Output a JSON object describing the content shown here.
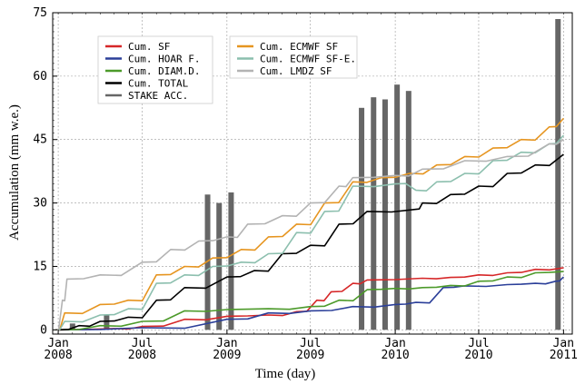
{
  "chart_data": {
    "type": "line",
    "xlabel": "Time (day)",
    "ylabel": "Accumulation (mm w.e.)",
    "xlim": [
      "2007-12-20",
      "2011-01-20"
    ],
    "ylim": [
      -1,
      75
    ],
    "grid": true,
    "legend_position": "top-left",
    "x_ticks": [
      {
        "date": "2008-01-01",
        "line1": "Jan",
        "line2": "2008"
      },
      {
        "date": "2008-07-01",
        "line1": "Jul",
        "line2": "2008"
      },
      {
        "date": "2009-01-01",
        "line1": "Jan",
        "line2": "2009"
      },
      {
        "date": "2009-07-01",
        "line1": "Jul",
        "line2": "2009"
      },
      {
        "date": "2010-01-01",
        "line1": "Jan",
        "line2": "2010"
      },
      {
        "date": "2010-07-01",
        "line1": "Jul",
        "line2": "2010"
      },
      {
        "date": "2011-01-01",
        "line1": "Jan",
        "line2": "2011"
      }
    ],
    "y_ticks": [
      0,
      15,
      30,
      45,
      60,
      75
    ],
    "series": [
      {
        "name": "Cum. SF",
        "color": "#d62728",
        "points": [
          [
            "2008-01-01",
            0
          ],
          [
            "2008-05-01",
            0.3
          ],
          [
            "2008-07-01",
            0.8
          ],
          [
            "2008-10-01",
            2.5
          ],
          [
            "2009-01-01",
            3.2
          ],
          [
            "2009-04-01",
            3.5
          ],
          [
            "2009-06-01",
            4.3
          ],
          [
            "2009-07-15",
            7
          ],
          [
            "2009-08-15",
            9
          ],
          [
            "2009-10-01",
            11
          ],
          [
            "2009-11-01",
            11.8
          ],
          [
            "2010-03-01",
            12.2
          ],
          [
            "2010-05-01",
            12.4
          ],
          [
            "2010-07-01",
            13
          ],
          [
            "2010-09-01",
            13.5
          ],
          [
            "2010-11-01",
            14.3
          ],
          [
            "2011-01-01",
            14.7
          ]
        ]
      },
      {
        "name": "Cum. HOAR F.",
        "color": "#2b3f99",
        "points": [
          [
            "2008-01-01",
            0
          ],
          [
            "2008-07-01",
            0.5
          ],
          [
            "2009-01-01",
            2.5
          ],
          [
            "2009-04-01",
            4
          ],
          [
            "2009-07-01",
            4.5
          ],
          [
            "2009-10-01",
            5.5
          ],
          [
            "2010-01-01",
            6
          ],
          [
            "2010-02-15",
            6.5
          ],
          [
            "2010-04-15",
            10
          ],
          [
            "2010-06-01",
            10.4
          ],
          [
            "2010-09-01",
            10.7
          ],
          [
            "2010-11-01",
            11
          ],
          [
            "2010-12-15",
            11.5
          ],
          [
            "2011-01-01",
            12.5
          ]
        ]
      },
      {
        "name": "Cum. DIAM.D.",
        "color": "#4c9a2a",
        "points": [
          [
            "2008-01-01",
            0
          ],
          [
            "2008-04-01",
            1
          ],
          [
            "2008-07-01",
            2
          ],
          [
            "2008-10-01",
            4.5
          ],
          [
            "2009-01-01",
            4.8
          ],
          [
            "2009-04-01",
            5
          ],
          [
            "2009-07-01",
            5.5
          ],
          [
            "2009-09-01",
            7
          ],
          [
            "2009-11-01",
            9.5
          ],
          [
            "2010-01-01",
            9.8
          ],
          [
            "2010-03-01",
            10
          ],
          [
            "2010-05-01",
            10.5
          ],
          [
            "2010-07-01",
            11.5
          ],
          [
            "2010-09-01",
            12.5
          ],
          [
            "2010-11-01",
            13.5
          ],
          [
            "2011-01-01",
            13.8
          ]
        ]
      },
      {
        "name": "Cum. TOTAL",
        "color": "#000000",
        "points": [
          [
            "2008-01-01",
            0
          ],
          [
            "2008-02-15",
            1
          ],
          [
            "2008-04-01",
            2
          ],
          [
            "2008-06-01",
            3
          ],
          [
            "2008-08-01",
            7
          ],
          [
            "2008-10-01",
            10
          ],
          [
            "2009-01-01",
            12.5
          ],
          [
            "2009-03-01",
            14
          ],
          [
            "2009-05-01",
            18
          ],
          [
            "2009-07-01",
            20
          ],
          [
            "2009-09-01",
            25
          ],
          [
            "2009-11-01",
            28
          ],
          [
            "2010-02-15",
            28.5
          ],
          [
            "2010-03-01",
            30
          ],
          [
            "2010-05-01",
            32
          ],
          [
            "2010-07-01",
            34
          ],
          [
            "2010-09-01",
            37
          ],
          [
            "2010-11-01",
            39
          ],
          [
            "2011-01-01",
            41.5
          ]
        ]
      },
      {
        "name": "Cum. ECMWF SF",
        "color": "#e69520",
        "points": [
          [
            "2007-12-25",
            0
          ],
          [
            "2008-01-15",
            4
          ],
          [
            "2008-04-01",
            6
          ],
          [
            "2008-06-01",
            7
          ],
          [
            "2008-08-01",
            13
          ],
          [
            "2008-10-01",
            15
          ],
          [
            "2008-12-01",
            17
          ],
          [
            "2009-02-01",
            19
          ],
          [
            "2009-04-01",
            22
          ],
          [
            "2009-06-01",
            25
          ],
          [
            "2009-08-01",
            30
          ],
          [
            "2009-10-01",
            35
          ],
          [
            "2009-12-01",
            36
          ],
          [
            "2010-02-01",
            37
          ],
          [
            "2010-04-01",
            39
          ],
          [
            "2010-06-01",
            41
          ],
          [
            "2010-08-01",
            43
          ],
          [
            "2010-10-01",
            45
          ],
          [
            "2010-12-01",
            48
          ],
          [
            "2011-01-01",
            50
          ]
        ]
      },
      {
        "name": "Cum. ECMWF SF-E.",
        "color": "#8cbfae",
        "points": [
          [
            "2007-12-25",
            0
          ],
          [
            "2008-01-15",
            2
          ],
          [
            "2008-04-01",
            3.5
          ],
          [
            "2008-06-01",
            5
          ],
          [
            "2008-08-01",
            11
          ],
          [
            "2008-10-01",
            13
          ],
          [
            "2008-12-01",
            15
          ],
          [
            "2009-02-01",
            16
          ],
          [
            "2009-04-01",
            18
          ],
          [
            "2009-06-01",
            23
          ],
          [
            "2009-08-01",
            28
          ],
          [
            "2009-10-01",
            34
          ],
          [
            "2010-01-01",
            34.5
          ],
          [
            "2010-02-15",
            33
          ],
          [
            "2010-04-01",
            35
          ],
          [
            "2010-06-01",
            37
          ],
          [
            "2010-08-01",
            40
          ],
          [
            "2010-10-01",
            42
          ],
          [
            "2010-12-01",
            44
          ],
          [
            "2011-01-01",
            46
          ]
        ]
      },
      {
        "name": "Cum. LMDZ SF",
        "color": "#b3b3b3",
        "points": [
          [
            "2007-12-25",
            0
          ],
          [
            "2008-01-10",
            7
          ],
          [
            "2008-01-20",
            12
          ],
          [
            "2008-04-01",
            13
          ],
          [
            "2008-07-01",
            16
          ],
          [
            "2008-09-01",
            19
          ],
          [
            "2008-11-01",
            21
          ],
          [
            "2009-01-01",
            22
          ],
          [
            "2009-02-15",
            25
          ],
          [
            "2009-05-01",
            27
          ],
          [
            "2009-07-01",
            30
          ],
          [
            "2009-09-01",
            34
          ],
          [
            "2009-10-01",
            36
          ],
          [
            "2010-01-01",
            36.5
          ],
          [
            "2010-03-01",
            38
          ],
          [
            "2010-06-01",
            40
          ],
          [
            "2010-09-01",
            41
          ],
          [
            "2010-12-01",
            44
          ],
          [
            "2011-01-01",
            45
          ]
        ]
      }
    ],
    "stake_acc": {
      "name": "STAKE ACC.",
      "color": "#666666",
      "bars": [
        {
          "date": "2008-02-01",
          "value": 1.5
        },
        {
          "date": "2008-04-15",
          "value": 3.5
        },
        {
          "date": "2008-11-20",
          "value": 32
        },
        {
          "date": "2008-12-15",
          "value": 30
        },
        {
          "date": "2009-01-10",
          "value": 32.5
        },
        {
          "date": "2009-10-20",
          "value": 52.5
        },
        {
          "date": "2009-11-15",
          "value": 55
        },
        {
          "date": "2009-12-10",
          "value": 54.5
        },
        {
          "date": "2010-01-05",
          "value": 58
        },
        {
          "date": "2010-01-30",
          "value": 56.5
        },
        {
          "date": "2010-12-20",
          "value": 73.5
        }
      ]
    },
    "legend": [
      {
        "label": "Cum. SF",
        "color": "#d62728"
      },
      {
        "label": "Cum. HOAR F.",
        "color": "#2b3f99"
      },
      {
        "label": "Cum. DIAM.D.",
        "color": "#4c9a2a"
      },
      {
        "label": "Cum. TOTAL",
        "color": "#000000"
      },
      {
        "label": "STAKE ACC.",
        "color": "#666666"
      },
      {
        "label": "Cum. ECMWF SF",
        "color": "#e69520"
      },
      {
        "label": "Cum. ECMWF SF-E.",
        "color": "#8cbfae"
      },
      {
        "label": "Cum. LMDZ SF",
        "color": "#b3b3b3"
      }
    ]
  }
}
